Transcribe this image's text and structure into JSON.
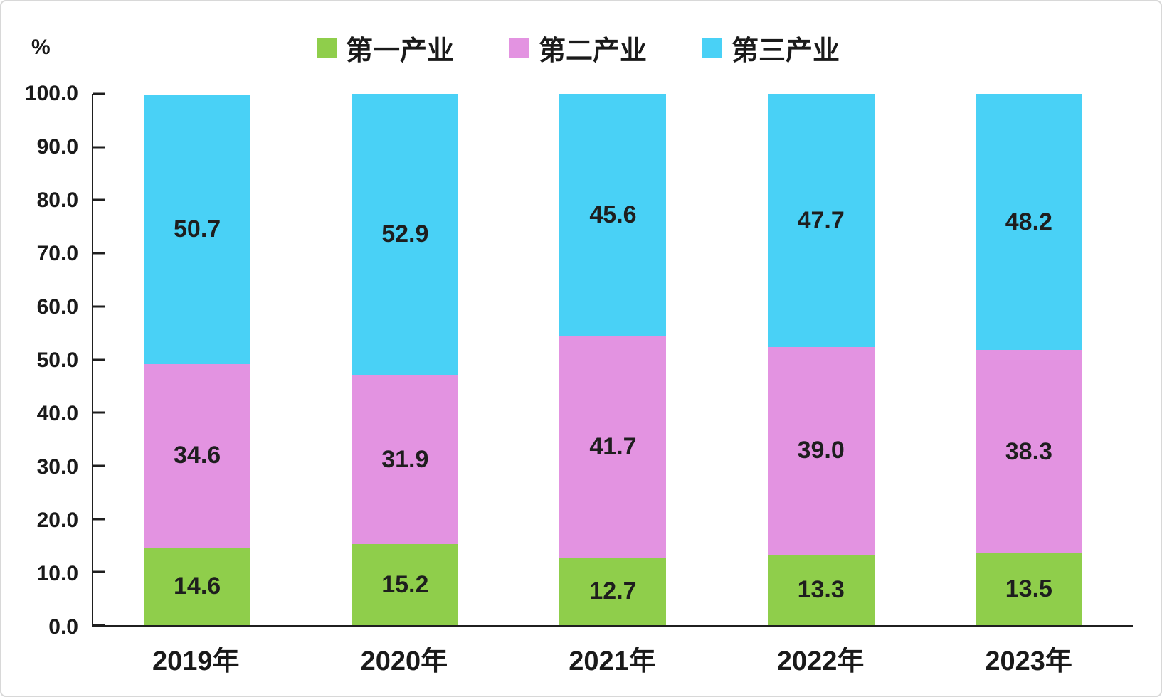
{
  "chart_data": {
    "type": "bar",
    "stacked": true,
    "title": "",
    "unit_label": "%",
    "categories": [
      "2019年",
      "2020年",
      "2021年",
      "2022年",
      "2023年"
    ],
    "series": [
      {
        "name": "第一产业",
        "color": "#8fce4b",
        "values": [
          14.6,
          15.2,
          12.7,
          13.3,
          13.5
        ]
      },
      {
        "name": "第二产业",
        "color": "#e393e1",
        "values": [
          34.6,
          31.9,
          41.7,
          39.0,
          38.3
        ]
      },
      {
        "name": "第三产业",
        "color": "#49d1f6",
        "values": [
          50.7,
          52.9,
          45.6,
          47.7,
          48.2
        ]
      }
    ],
    "xlabel": "",
    "ylabel": "%",
    "ylim": [
      0,
      100
    ],
    "ytick_step": 10,
    "ytick_decimals": 1,
    "value_label_decimals": 1,
    "legend_position": "top",
    "grid": false
  },
  "colors": {
    "axis": "#1f1f1f",
    "text": "#1a1a1a",
    "frame_border": "#d8d8d8",
    "background": "#ffffff"
  }
}
